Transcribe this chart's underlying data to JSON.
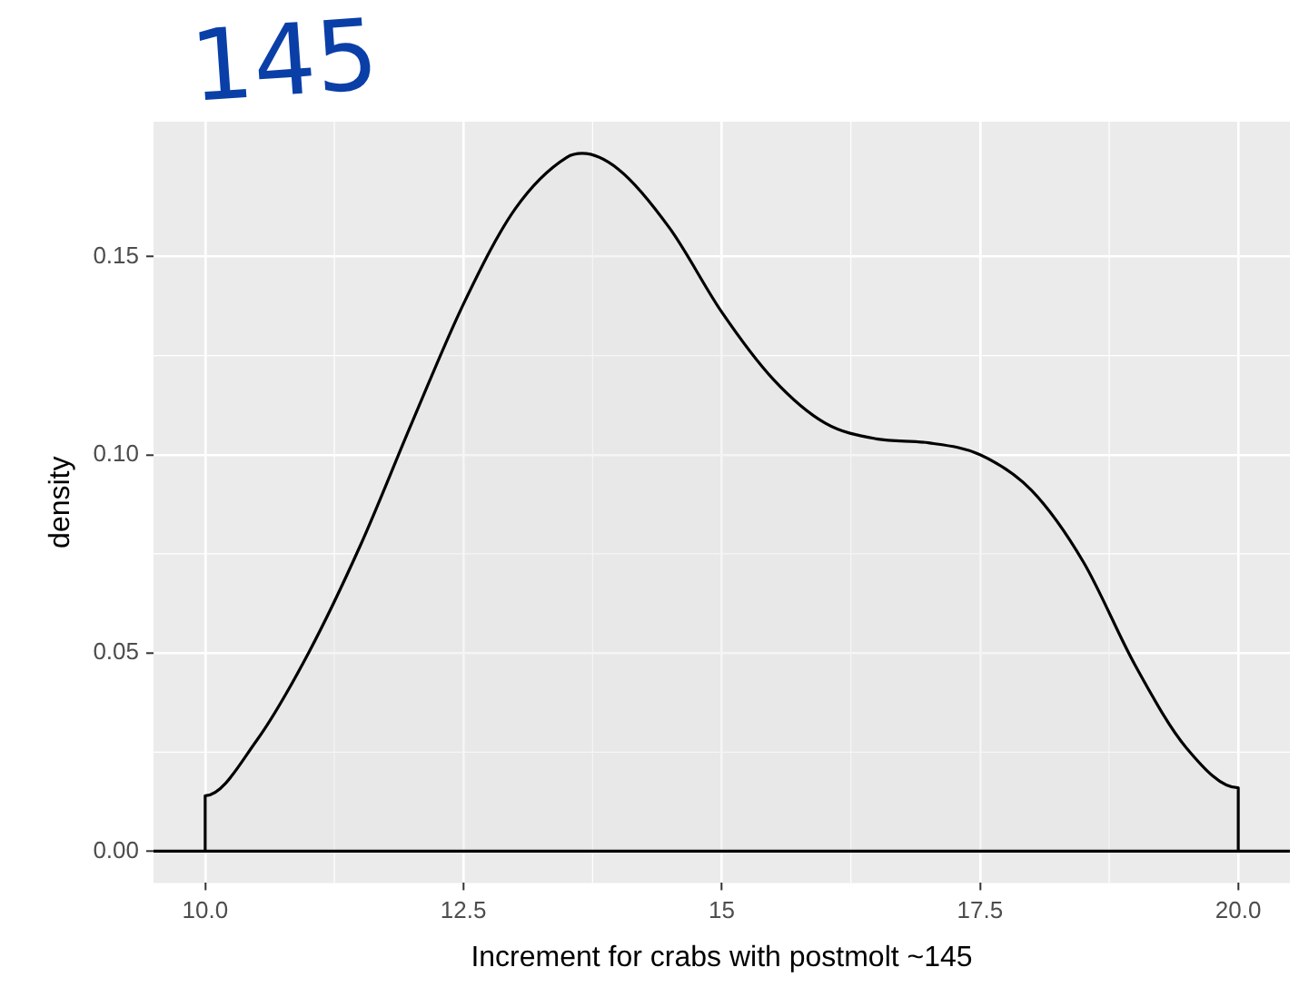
{
  "chart_data": {
    "type": "area",
    "xlabel": "Increment for crabs with postmolt ~145",
    "ylabel": "density",
    "annotations": [
      "145"
    ],
    "x": [
      10,
      10,
      10.5,
      11,
      11.5,
      12,
      12.5,
      13,
      13.5,
      13.65,
      14,
      14.5,
      15,
      15.5,
      16,
      16.5,
      17,
      17.5,
      18,
      18.5,
      19,
      19.5,
      20,
      20
    ],
    "series": [
      {
        "color": "#000000",
        "values": [
          0,
          0.014,
          0.028,
          0.05,
          0.077,
          0.108,
          0.138,
          0.162,
          0.175,
          0.176,
          0.172,
          0.157,
          0.136,
          0.119,
          0.108,
          0.104,
          0.103,
          0.1,
          0.091,
          0.073,
          0.047,
          0.026,
          0.016,
          0
        ]
      }
    ],
    "ref_lines": [
      {
        "axis": "y",
        "value": 0,
        "color": "#000000"
      }
    ],
    "xlim": [
      9.5,
      20.5
    ],
    "xticks": [
      {
        "value": 10,
        "label": "10.0"
      },
      12.5,
      15,
      {
        "value": 17.5,
        "label": "17.5"
      },
      {
        "value": 20,
        "label": "20.0"
      }
    ],
    "ylim": [
      -0.008,
      0.184
    ],
    "yticks": [
      {
        "value": 0,
        "label": "0.00"
      },
      {
        "value": 0.05,
        "label": "0.05"
      },
      {
        "value": 0.1,
        "label": "0.10"
      },
      {
        "value": 0.15,
        "label": "0.15"
      }
    ],
    "grid": true,
    "legend": false
  }
}
